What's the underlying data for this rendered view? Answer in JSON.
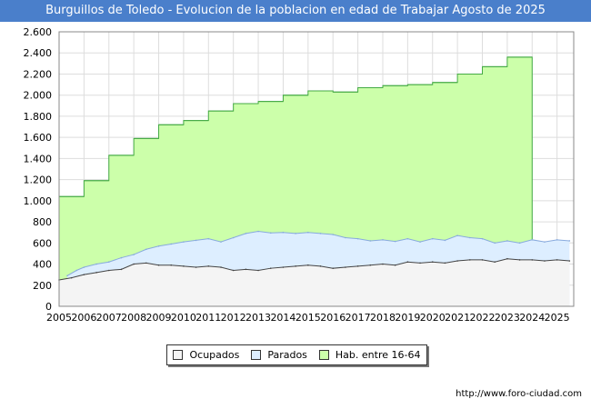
{
  "chart_data": {
    "type": "area",
    "title": "Burguillos de Toledo - Evolucion de la poblacion en edad de Trabajar Agosto de 2025",
    "xlabel": "",
    "ylabel": "",
    "ylim": [
      0,
      2600
    ],
    "yticks": [
      0,
      200,
      400,
      600,
      800,
      1000,
      1200,
      1400,
      1600,
      1800,
      2000,
      2200,
      2400,
      2600
    ],
    "ytick_labels": [
      "0",
      "200",
      "400",
      "600",
      "800",
      "1.000",
      "1.200",
      "1.400",
      "1.600",
      "1.800",
      "2.000",
      "2.200",
      "2.400",
      "2.600"
    ],
    "xlim": [
      2005,
      2025.67
    ],
    "xticks": [
      "2005",
      "2006",
      "2007",
      "2008",
      "2009",
      "2010",
      "2011",
      "2012",
      "2013",
      "2014",
      "2015",
      "2016",
      "2017",
      "2018",
      "2019",
      "2020",
      "2021",
      "2022",
      "2023",
      "2024",
      "2025"
    ],
    "grid": true,
    "series": [
      {
        "name": "Hab. entre 16-64",
        "color": "#ccffaa",
        "line_color": "#44aa44",
        "years": [
          2005,
          2006,
          2007,
          2008,
          2009,
          2010,
          2011,
          2012,
          2013,
          2014,
          2015,
          2016,
          2017,
          2018,
          2019,
          2020,
          2021,
          2022,
          2023
        ],
        "values": [
          1040,
          1190,
          1430,
          1590,
          1720,
          1760,
          1850,
          1920,
          1940,
          2000,
          2040,
          2030,
          2070,
          2090,
          2100,
          2120,
          2200,
          2270,
          2360
        ]
      },
      {
        "name": "Parados",
        "color": "#ddeeff",
        "line_color": "#88aadd",
        "x": [
          2005.33,
          2005.7,
          2006.0,
          2006.5,
          2007.0,
          2007.5,
          2008.0,
          2008.5,
          2009.0,
          2009.5,
          2010.0,
          2010.5,
          2011.0,
          2011.5,
          2012.0,
          2012.5,
          2013.0,
          2013.5,
          2014.0,
          2014.5,
          2015.0,
          2015.5,
          2016.0,
          2016.5,
          2017.0,
          2017.5,
          2018.0,
          2018.5,
          2019.0,
          2019.5,
          2020.0,
          2020.5,
          2021.0,
          2021.5,
          2022.0,
          2022.5,
          2023.0,
          2023.5,
          2024.0,
          2024.5,
          2025.0,
          2025.5
        ],
        "values": [
          290,
          340,
          370,
          400,
          420,
          460,
          490,
          540,
          570,
          590,
          610,
          625,
          640,
          610,
          650,
          690,
          710,
          695,
          700,
          690,
          700,
          690,
          680,
          650,
          640,
          620,
          630,
          615,
          640,
          610,
          640,
          625,
          670,
          650,
          640,
          600,
          620,
          600,
          630,
          610,
          630,
          620
        ]
      },
      {
        "name": "Ocupados",
        "color": "#f4f4f4",
        "line_color": "#444444",
        "x": [
          2005.0,
          2005.5,
          2006.0,
          2006.5,
          2007.0,
          2007.5,
          2008.0,
          2008.5,
          2009.0,
          2009.5,
          2010.0,
          2010.5,
          2011.0,
          2011.5,
          2012.0,
          2012.5,
          2013.0,
          2013.5,
          2014.0,
          2014.5,
          2015.0,
          2015.5,
          2016.0,
          2016.5,
          2017.0,
          2017.5,
          2018.0,
          2018.5,
          2019.0,
          2019.5,
          2020.0,
          2020.5,
          2021.0,
          2021.5,
          2022.0,
          2022.5,
          2023.0,
          2023.5,
          2024.0,
          2024.5,
          2025.0,
          2025.5
        ],
        "values": [
          250,
          270,
          300,
          320,
          340,
          350,
          400,
          410,
          390,
          390,
          380,
          370,
          380,
          370,
          340,
          350,
          340,
          360,
          370,
          380,
          390,
          380,
          360,
          370,
          380,
          390,
          400,
          390,
          420,
          410,
          420,
          410,
          430,
          440,
          440,
          420,
          450,
          440,
          440,
          430,
          440,
          430
        ]
      }
    ],
    "legend": [
      "Ocupados",
      "Parados",
      "Hab. entre 16-64"
    ],
    "legend_position": "bottom-center"
  },
  "credit": "http://www.foro-ciudad.com",
  "colors": {
    "title_bg": "#4a7fcb",
    "plot_border": "#888888",
    "grid": "#dddddd"
  }
}
